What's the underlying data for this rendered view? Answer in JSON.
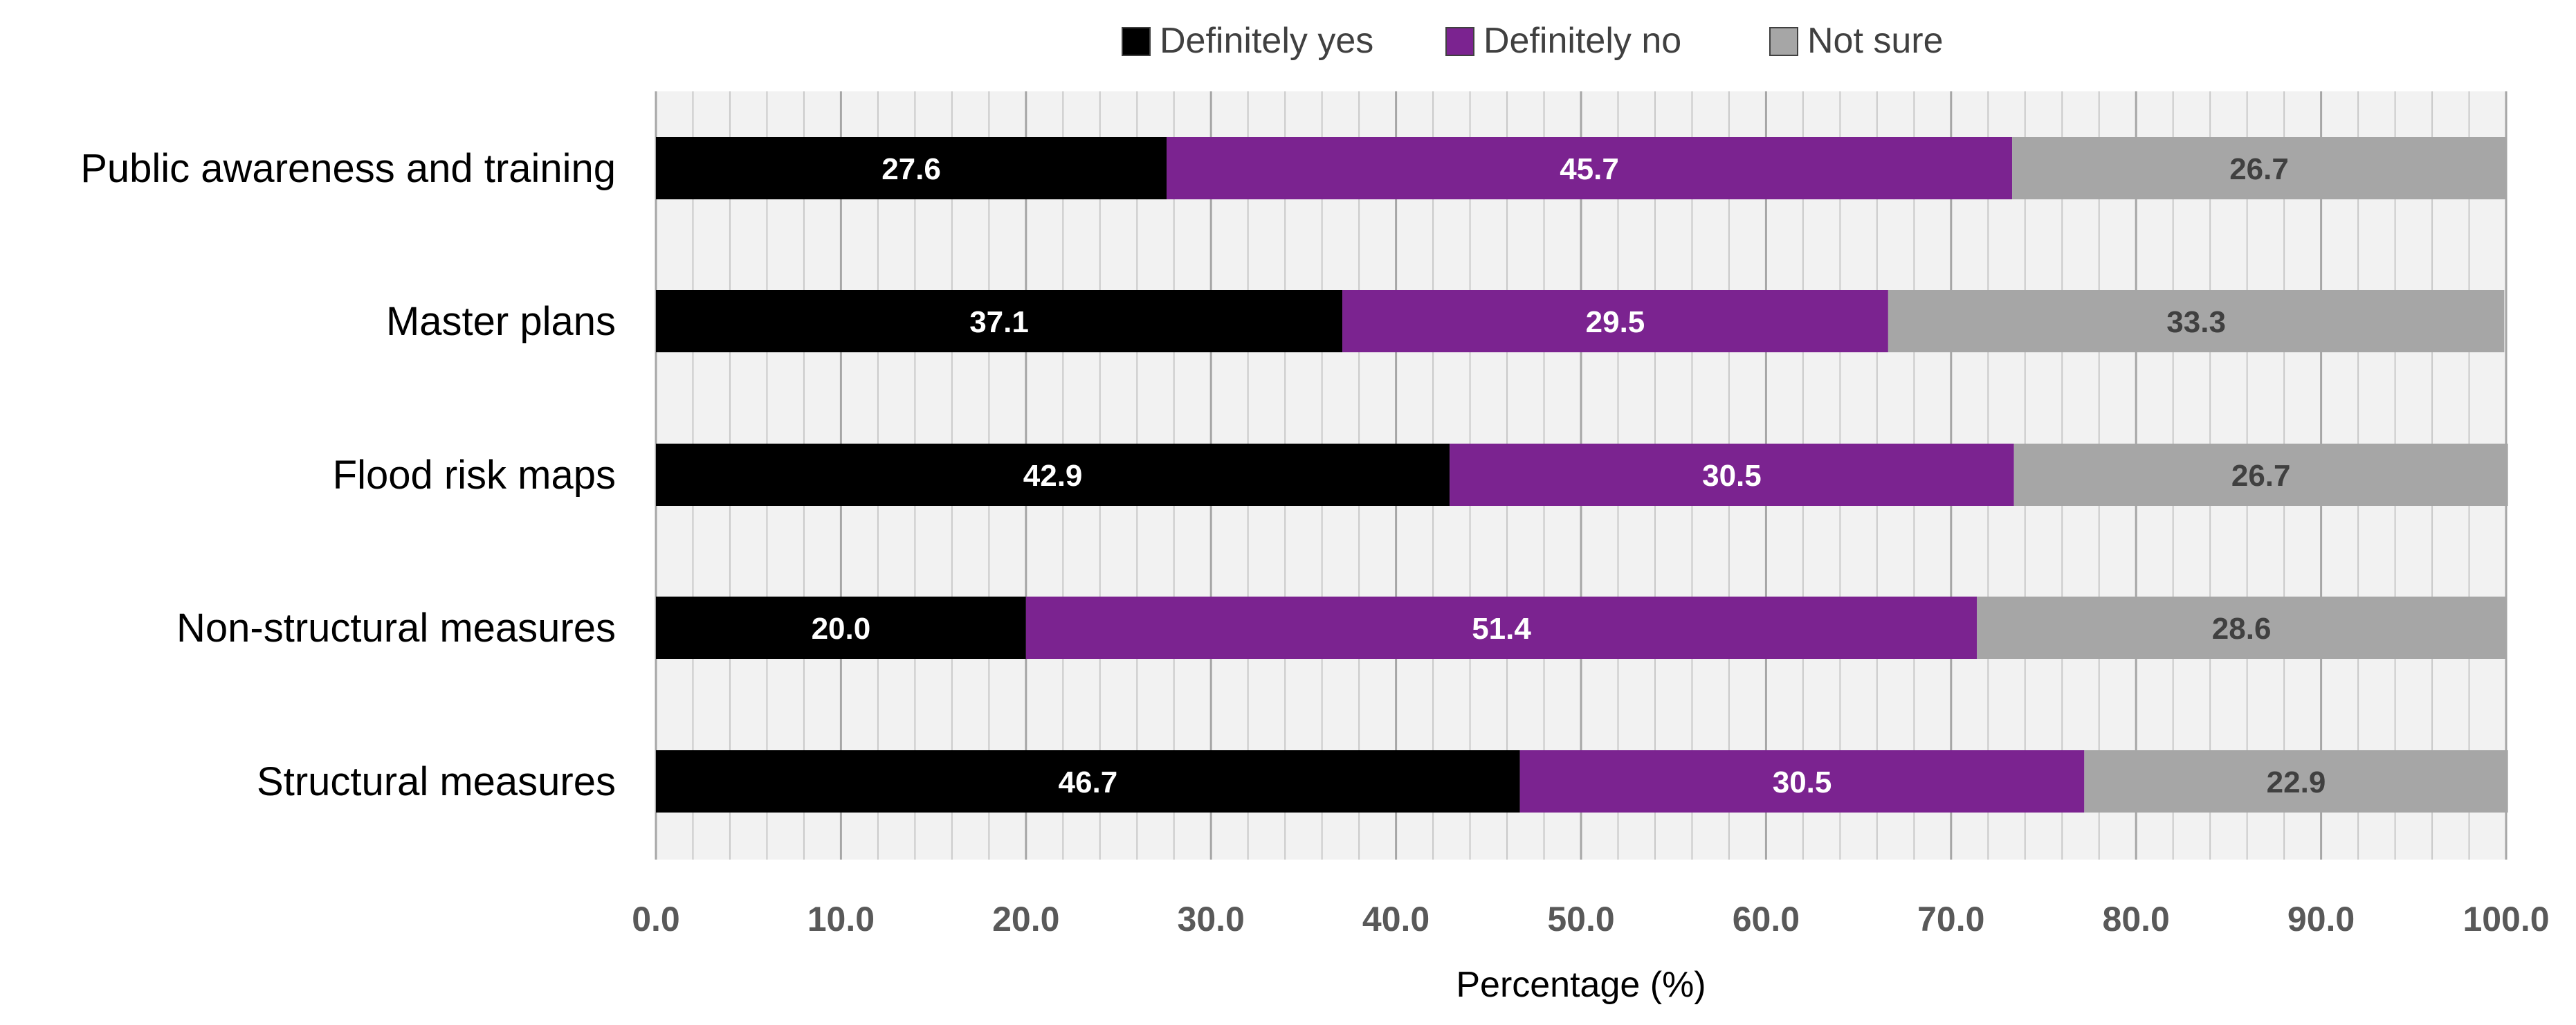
{
  "chart_data": {
    "type": "bar",
    "orientation": "horizontal",
    "stacked": true,
    "title": "",
    "xlabel": "Percentage (%)",
    "ylabel": "",
    "xlim": [
      0,
      100
    ],
    "x_ticks": [
      "0.0",
      "10.0",
      "20.0",
      "30.0",
      "40.0",
      "50.0",
      "60.0",
      "70.0",
      "80.0",
      "90.0",
      "100.0"
    ],
    "minor_tick_step": 2,
    "grid": true,
    "legend_position": "top-center",
    "categories": [
      "Public awareness and training",
      "Master plans",
      "Flood risk maps",
      "Non-structural measures",
      "Structural measures"
    ],
    "series": [
      {
        "name": "Definitely yes",
        "color": "#000000",
        "label_color": "#ffffff",
        "values": [
          27.6,
          37.1,
          42.9,
          20.0,
          46.7
        ],
        "labels": [
          "27.6",
          "37.1",
          "42.9",
          "20.0",
          "46.7"
        ]
      },
      {
        "name": "Definitely no",
        "color": "#7b2390",
        "label_color": "#ffffff",
        "values": [
          45.7,
          29.5,
          30.5,
          51.4,
          30.5
        ],
        "labels": [
          "45.7",
          "29.5",
          "30.5",
          "51.4",
          "30.5"
        ]
      },
      {
        "name": "Not sure",
        "color": "#a6a6a6",
        "label_color": "#404040",
        "values": [
          26.7,
          33.3,
          26.7,
          28.6,
          22.9
        ],
        "labels": [
          "26.7",
          "33.3",
          "26.7",
          "28.6",
          "22.9"
        ]
      }
    ],
    "colors": {
      "plot_background": "#f2f2f2",
      "major_grid": "#a6a6a6",
      "minor_grid": "#c9c9c9",
      "axis_tick_label": "#595959",
      "text": "#000000"
    }
  }
}
